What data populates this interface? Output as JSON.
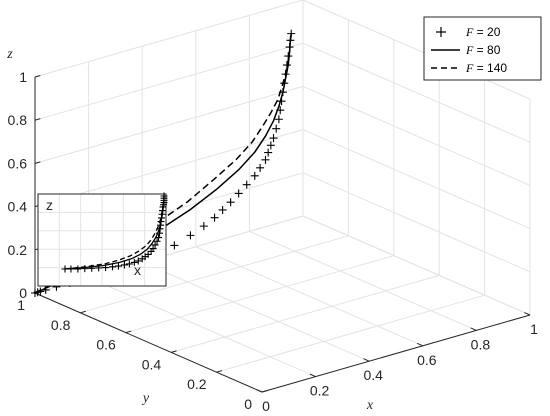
{
  "chart_data": {
    "type": "line",
    "title": "",
    "axes": {
      "x": {
        "label": "x",
        "lim": [
          0,
          1
        ],
        "ticks": [
          "0",
          "0.2",
          "0.4",
          "0.6",
          "0.8",
          "1"
        ]
      },
      "y": {
        "label": "y",
        "lim": [
          0,
          1
        ],
        "ticks": [
          "0",
          "0.2",
          "0.4",
          "0.6",
          "0.8",
          "1"
        ]
      },
      "z": {
        "label": "z",
        "lim": [
          0,
          1
        ],
        "ticks": [
          "0",
          "0.2",
          "0.4",
          "0.6",
          "0.8",
          "1"
        ]
      }
    },
    "grid": true,
    "legend": {
      "placement": "top-right",
      "entries": [
        {
          "var": "F",
          "eq": " = 20",
          "style": "plus-markers"
        },
        {
          "var": "F",
          "eq": " = 80",
          "style": "solid"
        },
        {
          "var": "F",
          "eq": " = 140",
          "style": "dashed"
        }
      ]
    },
    "series": [
      {
        "name": "F = 20",
        "style": "plus-markers",
        "x": [
          0.0,
          0.01,
          0.02,
          0.04,
          0.08,
          0.13,
          0.2,
          0.28,
          0.36,
          0.44,
          0.52,
          0.58,
          0.63,
          0.67,
          0.7,
          0.73,
          0.76,
          0.79,
          0.82,
          0.84,
          0.86,
          0.87,
          0.88,
          0.89,
          0.9,
          0.91,
          0.915,
          0.92,
          0.925,
          0.93,
          0.935,
          0.94,
          0.945,
          0.95,
          0.953,
          0.956
        ],
        "y": [
          1,
          1,
          1,
          1,
          1,
          1,
          1,
          1,
          1,
          1,
          1,
          1,
          1,
          1,
          1,
          1,
          1,
          1,
          1,
          1,
          1,
          1,
          1,
          1,
          1,
          1,
          1,
          1,
          1,
          1,
          1,
          1,
          1,
          1,
          1,
          1
        ],
        "z": [
          0.0,
          0.0,
          0.0,
          0.0,
          0.0,
          0.0,
          0.0,
          0.0,
          0.01,
          0.02,
          0.035,
          0.06,
          0.085,
          0.11,
          0.135,
          0.16,
          0.19,
          0.22,
          0.25,
          0.28,
          0.31,
          0.34,
          0.37,
          0.4,
          0.44,
          0.48,
          0.52,
          0.56,
          0.6,
          0.64,
          0.68,
          0.72,
          0.76,
          0.8,
          0.83,
          0.86
        ]
      },
      {
        "name": "F = 80",
        "style": "solid",
        "x": [
          0.0,
          0.05,
          0.15,
          0.3,
          0.45,
          0.58,
          0.68,
          0.76,
          0.82,
          0.86,
          0.89,
          0.91,
          0.925,
          0.935,
          0.945,
          0.95,
          0.953,
          0.956
        ],
        "y": [
          1,
          1,
          1,
          1,
          1,
          1,
          1,
          1,
          1,
          1,
          1,
          1,
          1,
          1,
          1,
          1,
          1,
          1
        ],
        "z": [
          0.0,
          0.01,
          0.03,
          0.07,
          0.12,
          0.18,
          0.24,
          0.3,
          0.36,
          0.42,
          0.48,
          0.54,
          0.6,
          0.66,
          0.72,
          0.78,
          0.83,
          0.86
        ]
      },
      {
        "name": "F = 140",
        "style": "dashed",
        "x": [
          0.0,
          0.05,
          0.15,
          0.3,
          0.45,
          0.57,
          0.67,
          0.75,
          0.81,
          0.85,
          0.88,
          0.905,
          0.92,
          0.932,
          0.942,
          0.95,
          0.953,
          0.956
        ],
        "y": [
          1,
          1,
          1,
          1,
          1,
          1,
          1,
          1,
          1,
          1,
          1,
          1,
          1,
          1,
          1,
          1,
          1,
          1
        ],
        "z": [
          0.0,
          0.015,
          0.045,
          0.1,
          0.16,
          0.22,
          0.29,
          0.35,
          0.41,
          0.47,
          0.52,
          0.57,
          0.62,
          0.67,
          0.72,
          0.78,
          0.83,
          0.86
        ]
      }
    ],
    "inset": {
      "xlabel": "x",
      "zlabel": "z",
      "series": [
        {
          "name": "F = 20",
          "style": "plus-markers",
          "x": [
            0.0,
            0.06,
            0.13,
            0.2,
            0.27,
            0.34,
            0.41,
            0.48,
            0.54,
            0.6,
            0.65,
            0.7,
            0.74,
            0.78,
            0.81,
            0.84,
            0.87,
            0.89,
            0.91,
            0.93,
            0.945,
            0.955,
            0.96,
            0.965,
            0.97,
            0.975,
            0.98,
            0.985,
            0.99,
            0.995,
            1.0,
            1.0,
            1.0,
            1.0
          ],
          "z": [
            0.0,
            0.0,
            0.0,
            0.005,
            0.01,
            0.015,
            0.02,
            0.03,
            0.04,
            0.055,
            0.07,
            0.09,
            0.11,
            0.14,
            0.17,
            0.2,
            0.24,
            0.28,
            0.33,
            0.38,
            0.43,
            0.49,
            0.55,
            0.6,
            0.65,
            0.7,
            0.75,
            0.8,
            0.85,
            0.88,
            0.91,
            0.94,
            0.97,
            1.0
          ]
        },
        {
          "name": "F = 80",
          "style": "solid",
          "x": [
            0.0,
            0.2,
            0.4,
            0.55,
            0.67,
            0.76,
            0.83,
            0.88,
            0.92,
            0.95,
            0.97,
            0.985,
            0.995,
            1.0
          ],
          "z": [
            0.0,
            0.02,
            0.05,
            0.09,
            0.14,
            0.2,
            0.27,
            0.35,
            0.44,
            0.54,
            0.65,
            0.76,
            0.88,
            1.0
          ]
        },
        {
          "name": "F = 140",
          "style": "dashed",
          "x": [
            0.0,
            0.2,
            0.4,
            0.54,
            0.66,
            0.75,
            0.82,
            0.87,
            0.91,
            0.94,
            0.965,
            0.98,
            0.993,
            1.0
          ],
          "z": [
            0.0,
            0.03,
            0.07,
            0.12,
            0.18,
            0.25,
            0.32,
            0.4,
            0.49,
            0.58,
            0.68,
            0.78,
            0.89,
            1.0
          ]
        }
      ]
    }
  }
}
